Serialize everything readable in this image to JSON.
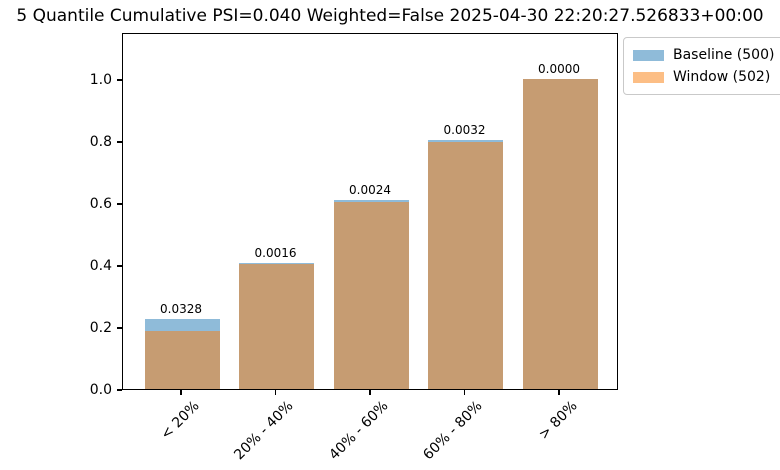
{
  "chart_data": {
    "type": "bar",
    "title": "5 Quantile Cumulative PSI=0.040 Weighted=False 2025-04-30 22:20:27.526833+00:00",
    "categories": [
      "< 20%",
      "20% - 40%",
      "40% - 60%",
      "60% - 80%",
      "> 80%"
    ],
    "series": [
      {
        "name": "Baseline (500)",
        "color": "#8fbbd9",
        "values": [
          0.226,
          0.407,
          0.61,
          0.803,
          1.0
        ]
      },
      {
        "name": "Window (502)",
        "color": "#fcbe85",
        "values": [
          0.187,
          0.403,
          0.605,
          0.798,
          1.0
        ]
      }
    ],
    "overlap_color": "#c69c72",
    "bar_value_labels": [
      "0.0328",
      "0.0016",
      "0.0024",
      "0.0032",
      "0.0000"
    ],
    "ytick_labels": [
      "0.0",
      "0.2",
      "0.4",
      "0.6",
      "0.8",
      "1.0"
    ],
    "ytick_values": [
      0.0,
      0.2,
      0.4,
      0.6,
      0.8,
      1.0
    ],
    "ylim": [
      0,
      1.152
    ],
    "xlabel": "",
    "ylabel": "",
    "grid": false,
    "legend": {
      "position": "upper-right-outside",
      "entries": [
        "Baseline (500)",
        "Window (502)"
      ]
    }
  }
}
